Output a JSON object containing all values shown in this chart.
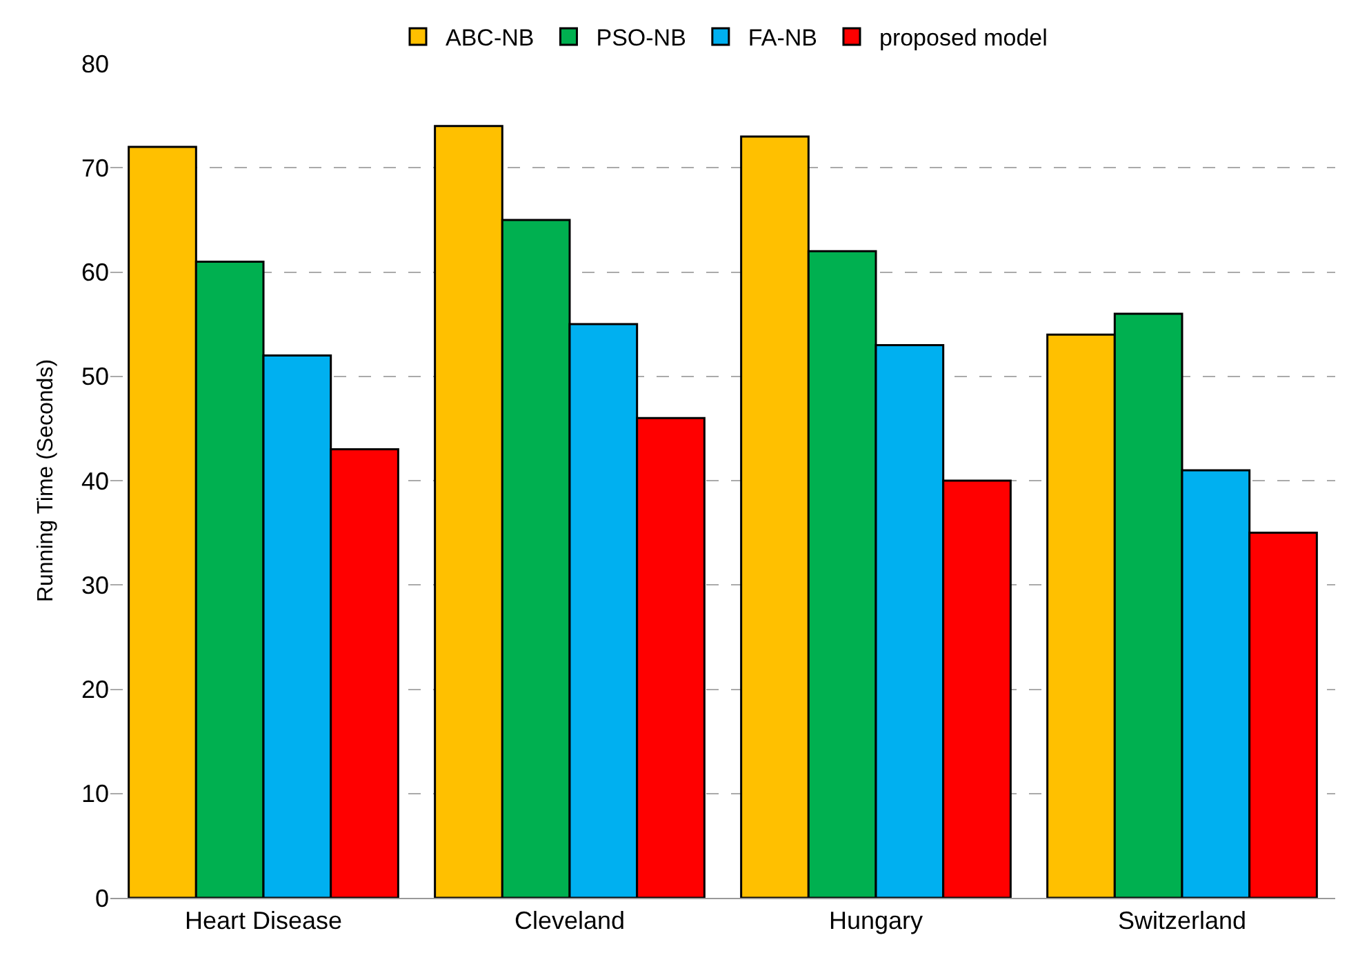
{
  "chart_data": {
    "type": "bar",
    "ylabel": "Running Time (Seconds)",
    "categories": [
      "Heart Disease",
      "Cleveland",
      "Hungary",
      "Switzerland"
    ],
    "series": [
      {
        "name": "ABC-NB",
        "color": "#ffc000",
        "values": [
          72,
          74,
          73,
          54
        ]
      },
      {
        "name": "PSO-NB",
        "color": "#00b050",
        "values": [
          61,
          65,
          62,
          56
        ]
      },
      {
        "name": "FA-NB",
        "color": "#00b0f0",
        "values": [
          52,
          55,
          53,
          41
        ]
      },
      {
        "name": "proposed model",
        "color": "#ff0000",
        "values": [
          43,
          46,
          40,
          35
        ]
      }
    ],
    "ylim": [
      0,
      80
    ],
    "yticks": [
      0,
      10,
      20,
      30,
      40,
      50,
      60,
      70,
      80
    ],
    "grid": "y",
    "legend": "top"
  }
}
